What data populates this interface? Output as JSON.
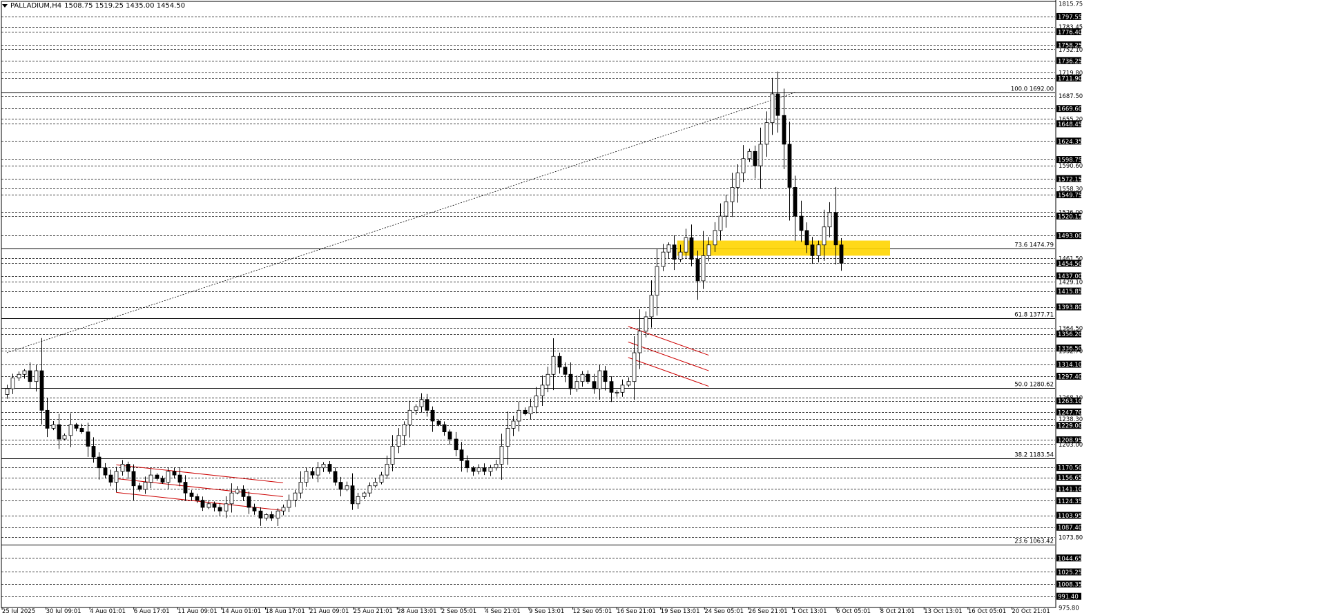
{
  "header": {
    "symbol": "PALLADIUM,H4",
    "ohlc": "1508.75 1519.25 1435.00 1454.50"
  },
  "chart_data": {
    "type": "candlestick",
    "symbol": "PALLADIUM",
    "timeframe": "H4",
    "ylim": [
      975.8,
      1815.75
    ],
    "y_top_label": "1815.75",
    "y_bottom_label": "975.80",
    "price_levels": [
      {
        "value": "1797.55",
        "boxed": true
      },
      {
        "value": "1783.45",
        "boxed": false
      },
      {
        "value": "1776.40",
        "boxed": true
      },
      {
        "value": "1758.25",
        "boxed": true
      },
      {
        "value": "1752.10",
        "boxed": false
      },
      {
        "value": "1736.25",
        "boxed": true
      },
      {
        "value": "1719.80",
        "boxed": false
      },
      {
        "value": "1711.90",
        "boxed": true
      },
      {
        "value": "1687.50",
        "boxed": false
      },
      {
        "value": "1669.60",
        "boxed": true
      },
      {
        "value": "1655.20",
        "boxed": false
      },
      {
        "value": "1648.45",
        "boxed": true
      },
      {
        "value": "1624.35",
        "boxed": true
      },
      {
        "value": "1598.75",
        "boxed": true
      },
      {
        "value": "1590.60",
        "boxed": false
      },
      {
        "value": "1572.15",
        "boxed": true
      },
      {
        "value": "1558.30",
        "boxed": false
      },
      {
        "value": "1549.75",
        "boxed": true
      },
      {
        "value": "1526.00",
        "boxed": false
      },
      {
        "value": "1520.15",
        "boxed": true
      },
      {
        "value": "1493.00",
        "boxed": true
      },
      {
        "value": "1461.50",
        "boxed": false
      },
      {
        "value": "1454.50",
        "boxed": true
      },
      {
        "value": "1437.00",
        "boxed": true
      },
      {
        "value": "1429.10",
        "boxed": false
      },
      {
        "value": "1415.85",
        "boxed": true
      },
      {
        "value": "1393.80",
        "boxed": true
      },
      {
        "value": "1364.50",
        "boxed": false
      },
      {
        "value": "1356.20",
        "boxed": true
      },
      {
        "value": "1336.50",
        "boxed": true
      },
      {
        "value": "1332.70",
        "boxed": false
      },
      {
        "value": "1314.10",
        "boxed": true
      },
      {
        "value": "1297.40",
        "boxed": true
      },
      {
        "value": "1268.10",
        "boxed": false
      },
      {
        "value": "1263.10",
        "boxed": true
      },
      {
        "value": "1247.70",
        "boxed": true
      },
      {
        "value": "1238.30",
        "boxed": false
      },
      {
        "value": "1229.00",
        "boxed": true
      },
      {
        "value": "1208.95",
        "boxed": true
      },
      {
        "value": "1203.00",
        "boxed": false
      },
      {
        "value": "1170.50",
        "boxed": true
      },
      {
        "value": "1156.65",
        "boxed": true
      },
      {
        "value": "1141.10",
        "boxed": true
      },
      {
        "value": "1124.35",
        "boxed": true
      },
      {
        "value": "1103.95",
        "boxed": true
      },
      {
        "value": "1087.40",
        "boxed": true
      },
      {
        "value": "1073.80",
        "boxed": false
      },
      {
        "value": "1044.65",
        "boxed": true
      },
      {
        "value": "1025.25",
        "boxed": true
      },
      {
        "value": "1008.35",
        "boxed": true
      },
      {
        "value": "991.40",
        "boxed": true
      }
    ],
    "fib_levels": [
      {
        "value": 1692.0,
        "label": "100.0 1692.00"
      },
      {
        "value": 1474.79,
        "label": "73.6 1474.79"
      },
      {
        "value": 1377.71,
        "label": "61.8 1377.71"
      },
      {
        "value": 1280.62,
        "label": "50.0 1280.62"
      },
      {
        "value": 1183.54,
        "label": "38.2 1183.54"
      },
      {
        "value": 1063.42,
        "label": "23.6 1063.42"
      }
    ],
    "x_labels": [
      "25 Jul 2025",
      "30 Jul 09:01",
      "4 Aug 01:01",
      "6 Aug 17:01",
      "11 Aug 09:01",
      "14 Aug 01:01",
      "18 Aug 17:01",
      "21 Aug 09:01",
      "25 Aug 21:01",
      "28 Aug 13:01",
      "2 Sep 05:01",
      "4 Sep 21:01",
      "9 Sep 13:01",
      "12 Sep 05:01",
      "16 Sep 21:01",
      "19 Sep 13:01",
      "24 Sep 05:01",
      "26 Sep 21:01",
      "1 Oct 13:01",
      "6 Oct 05:01",
      "8 Oct 21:01",
      "13 Oct 13:01",
      "16 Oct 05:01",
      "20 Oct 21:01"
    ],
    "closes": [
      1280,
      1295,
      1300,
      1305,
      1290,
      1305,
      1250,
      1225,
      1230,
      1210,
      1215,
      1230,
      1225,
      1220,
      1200,
      1185,
      1170,
      1160,
      1150,
      1165,
      1175,
      1165,
      1145,
      1140,
      1150,
      1160,
      1155,
      1150,
      1165,
      1160,
      1150,
      1135,
      1130,
      1125,
      1115,
      1120,
      1115,
      1110,
      1120,
      1135,
      1140,
      1130,
      1115,
      1110,
      1100,
      1105,
      1100,
      1110,
      1115,
      1125,
      1135,
      1150,
      1165,
      1160,
      1170,
      1175,
      1165,
      1150,
      1140,
      1145,
      1120,
      1130,
      1135,
      1145,
      1150,
      1160,
      1175,
      1200,
      1215,
      1230,
      1250,
      1255,
      1265,
      1250,
      1235,
      1230,
      1220,
      1210,
      1195,
      1180,
      1170,
      1165,
      1170,
      1165,
      1170,
      1175,
      1200,
      1225,
      1235,
      1250,
      1245,
      1255,
      1270,
      1285,
      1300,
      1325,
      1310,
      1300,
      1280,
      1290,
      1300,
      1290,
      1280,
      1305,
      1290,
      1275,
      1275,
      1285,
      1290,
      1330,
      1360,
      1380,
      1410,
      1450,
      1470,
      1480,
      1460,
      1470,
      1490,
      1460,
      1430,
      1465,
      1480,
      1500,
      1520,
      1540,
      1560,
      1580,
      1600,
      1610,
      1590,
      1620,
      1650,
      1690,
      1660,
      1620,
      1560,
      1520,
      1500,
      1480,
      1465,
      1480,
      1505,
      1525,
      1480,
      1454.5
    ],
    "series": [
      {
        "name": "PALLADIUM,H4"
      }
    ],
    "colors": {
      "background": "#ffffff",
      "candle": "#000000",
      "grid": "#000000",
      "channel": "#cc0000",
      "zone": "#ffd500"
    },
    "zone_range": [
      1465,
      1486
    ],
    "channels": [
      {
        "from": {
          "x_index": 19,
          "price": 1155
        },
        "to": {
          "x_index": 48,
          "price": 1130
        },
        "offset": 40
      },
      {
        "from": {
          "x_index": 108,
          "price": 1345
        },
        "to": {
          "x_index": 122,
          "price": 1305
        },
        "offset": 45
      }
    ],
    "trend_line": {
      "from": {
        "x_index": 0,
        "price": 1330
      },
      "to": {
        "x_index": 137,
        "price": 1692
      }
    }
  }
}
